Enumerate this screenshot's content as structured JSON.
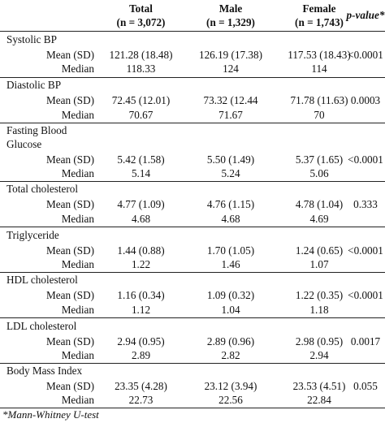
{
  "headers": {
    "total_title": "Total",
    "total_n": "(n = 3,072)",
    "male_title": "Male",
    "male_n": "(n = 1,329)",
    "female_title": "Female",
    "female_n": "(n = 1,743)",
    "pvalue": "p-value*"
  },
  "rows": [
    {
      "variable": "Systolic BP",
      "mean_label": "Mean (SD)",
      "median_label": "Median",
      "total_mean": "121.28 (18.48)",
      "male_mean": "126.19 (17.38)",
      "female_mean": "117.53 (18.43)",
      "p": "<0.0001",
      "total_median": "118.33",
      "male_median": "124",
      "female_median": "114"
    },
    {
      "variable": "Diastolic BP",
      "mean_label": "Mean (SD)",
      "median_label": "Median",
      "total_mean": "72.45 (12.01)",
      "male_mean": "73.32 (12.44",
      "female_mean": "71.78 (11.63)",
      "p": "0.0003",
      "total_median": "70.67",
      "male_median": "71.67",
      "female_median": "70"
    },
    {
      "variable": "Fasting Blood",
      "variable2": "Glucose",
      "mean_label": "Mean (SD)",
      "median_label": "Median",
      "total_mean": "5.42 (1.58)",
      "male_mean": "5.50 (1.49)",
      "female_mean": "5.37 (1.65)",
      "p": "<0.0001",
      "total_median": "5.14",
      "male_median": "5.24",
      "female_median": "5.06"
    },
    {
      "variable": "Total cholesterol",
      "mean_label": "Mean (SD)",
      "median_label": "Median",
      "total_mean": "4.77 (1.09)",
      "male_mean": "4.76 (1.15)",
      "female_mean": "4.78 (1.04)",
      "p": "0.333",
      "total_median": "4.68",
      "male_median": "4.68",
      "female_median": "4.69"
    },
    {
      "variable": "Triglyceride",
      "mean_label": "Mean (SD)",
      "median_label": "Median",
      "total_mean": "1.44 (0.88)",
      "male_mean": "1.70 (1.05)",
      "female_mean": "1.24 (0.65)",
      "p": "<0.0001",
      "total_median": "1.22",
      "male_median": "1.46",
      "female_median": "1.07"
    },
    {
      "variable": "HDL cholesterol",
      "mean_label": "Mean (SD)",
      "median_label": "Median",
      "total_mean": "1.16 (0.34)",
      "male_mean": "1.09 (0.32)",
      "female_mean": "1.22 (0.35)",
      "p": "<0.0001",
      "total_median": "1.12",
      "male_median": "1.04",
      "female_median": "1.18"
    },
    {
      "variable": "LDL cholesterol",
      "mean_label": "Mean (SD)",
      "median_label": "Median",
      "total_mean": "2.94 (0.95)",
      "male_mean": "2.89 (0.96)",
      "female_mean": "2.98 (0.95)",
      "p": "0.0017",
      "total_median": "2.89",
      "male_median": "2.82",
      "female_median": "2.94"
    },
    {
      "variable": "Body Mass Index",
      "mean_label": "Mean (SD)",
      "median_label": "Median",
      "total_mean": "23.35 (4.28)",
      "male_mean": "23.12 (3.94)",
      "female_mean": "23.53 (4.51)",
      "p": "0.055",
      "total_median": "22.73",
      "male_median": "22.56",
      "female_median": "22.84"
    }
  ],
  "footnote": "*Mann-Whitney U-test"
}
